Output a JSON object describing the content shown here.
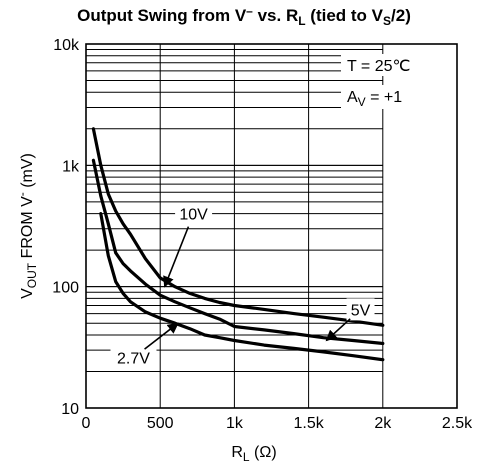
{
  "chart_data": {
    "type": "line",
    "title": {
      "parts": [
        "Output Swing from V",
        "–",
        " vs. R",
        "L",
        " (tied to V",
        "S",
        "/2)"
      ]
    },
    "xlabel": {
      "main": "R",
      "sub": "L",
      "rest": " (Ω)"
    },
    "ylabel": {
      "main": "V",
      "sub": "OUT",
      "rest": " FROM V",
      "sup": "-",
      "tail": " (mV)"
    },
    "xlim": [
      0,
      2500
    ],
    "ylim": [
      10,
      10000
    ],
    "yscale": "log",
    "grid": true,
    "x_ticks": [
      {
        "value": 0,
        "label": "0"
      },
      {
        "value": 500,
        "label": "500"
      },
      {
        "value": 1000,
        "label": "1k"
      },
      {
        "value": 1500,
        "label": "1.5k"
      },
      {
        "value": 2000,
        "label": "2k"
      },
      {
        "value": 2500,
        "label": "2.5k"
      }
    ],
    "y_ticks": [
      {
        "value": 10,
        "label": "10"
      },
      {
        "value": 100,
        "label": "100"
      },
      {
        "value": 1000,
        "label": "1k"
      },
      {
        "value": 10000,
        "label": "10k"
      }
    ],
    "conditions": [
      {
        "text": "T = 25℃"
      },
      {
        "main": "A",
        "sub": "V",
        "rest": " = +1"
      }
    ],
    "series": [
      {
        "name": "10V",
        "x": [
          50,
          100,
          150,
          200,
          250,
          300,
          400,
          500,
          600,
          700,
          800,
          900,
          1000,
          1200,
          1400,
          1600,
          1800,
          2000
        ],
        "y": [
          2000,
          1000,
          580,
          420,
          330,
          270,
          170,
          118,
          100,
          88,
          80,
          74,
          70,
          65,
          60,
          56,
          52,
          48
        ]
      },
      {
        "name": "5V",
        "x": [
          50,
          100,
          150,
          200,
          250,
          300,
          400,
          500,
          600,
          700,
          800,
          900,
          1000,
          1200,
          1400,
          1600,
          1800,
          2000
        ],
        "y": [
          1100,
          560,
          330,
          190,
          155,
          135,
          105,
          85,
          75,
          67,
          60,
          54,
          47,
          44,
          41,
          38,
          36,
          34
        ]
      },
      {
        "name": "2.7V",
        "x": [
          100,
          150,
          200,
          250,
          300,
          400,
          500,
          600,
          700,
          800,
          900,
          1000,
          1200,
          1400,
          1600,
          1800,
          2000
        ],
        "y": [
          400,
          180,
          110,
          88,
          75,
          62,
          55,
          50,
          45,
          40,
          38,
          36,
          33,
          31,
          29,
          27,
          25
        ]
      }
    ]
  }
}
